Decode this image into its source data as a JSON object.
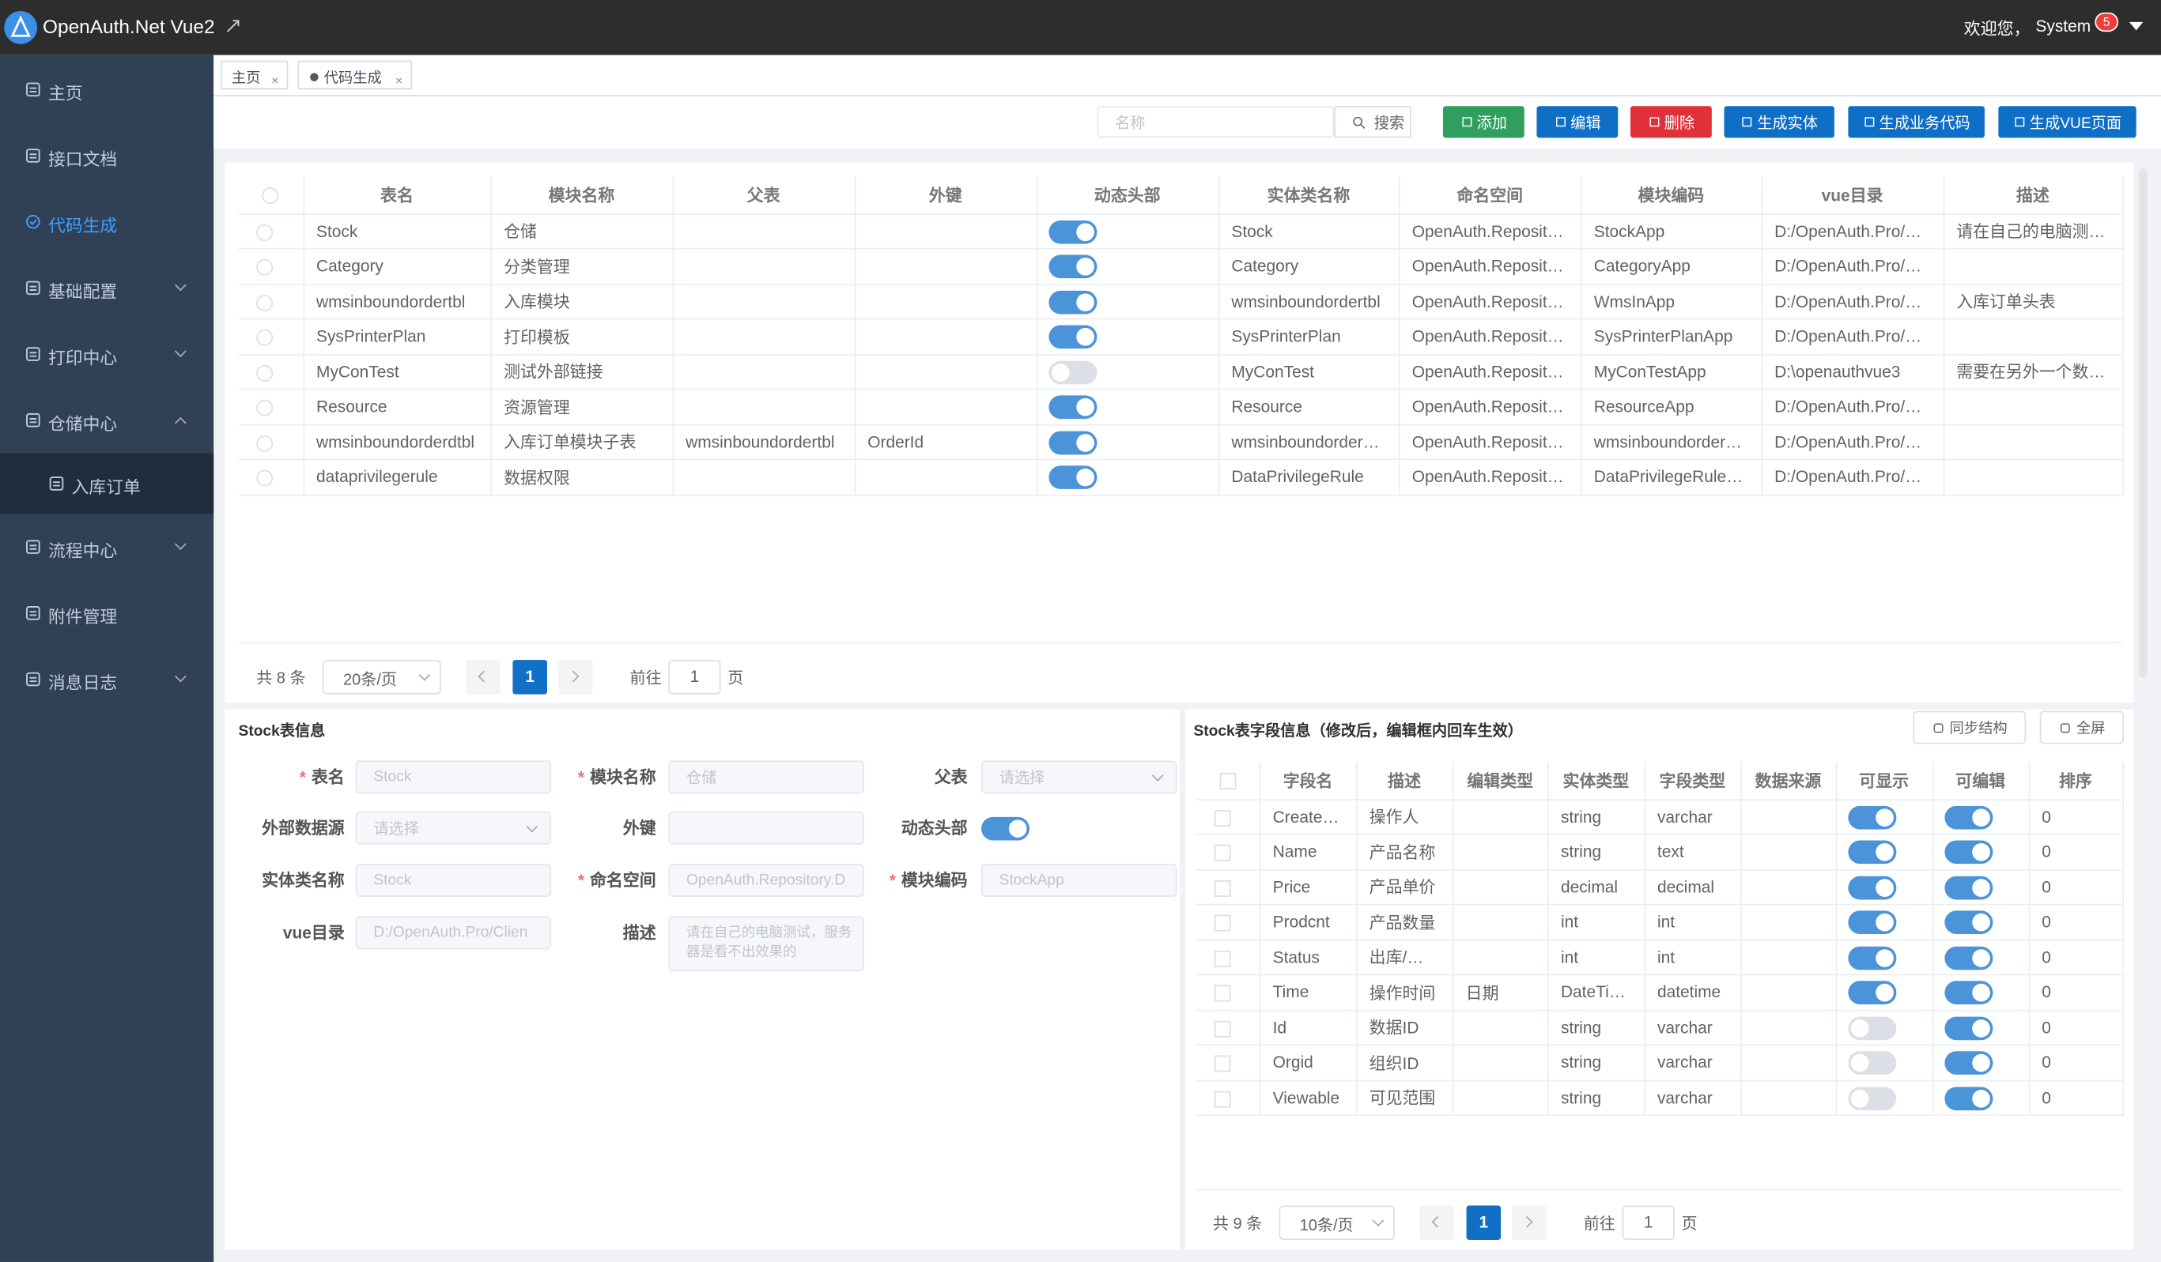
{
  "header": {
    "title": "OpenAuth.Net Vue2",
    "welcome": "欢迎您，",
    "user": "System",
    "badge": "5"
  },
  "sidebar": [
    {
      "label": "主页"
    },
    {
      "label": "接口文档"
    },
    {
      "label": "代码生成",
      "active": true
    },
    {
      "label": "基础配置",
      "arrow": "down"
    },
    {
      "label": "打印中心",
      "arrow": "down"
    },
    {
      "label": "仓储中心",
      "arrow": "up"
    },
    {
      "label": "入库订单",
      "sub": true
    },
    {
      "label": "流程中心",
      "arrow": "down"
    },
    {
      "label": "附件管理"
    },
    {
      "label": "消息日志",
      "arrow": "down"
    }
  ],
  "tabs": [
    "主页",
    "代码生成"
  ],
  "toolbar": {
    "placeholder": "名称",
    "search": "搜索",
    "buttons": [
      {
        "label": "添加",
        "color": "#2f9e5e"
      },
      {
        "label": "编辑",
        "color": "#0f6fc6"
      },
      {
        "label": "删除",
        "color": "#e0313b"
      },
      {
        "label": "生成实体",
        "color": "#0f6fc6"
      },
      {
        "label": "生成业务代码",
        "color": "#0f6fc6"
      },
      {
        "label": "生成VUE页面",
        "color": "#0f6fc6"
      }
    ]
  },
  "table": {
    "columns": [
      "表名",
      "模块名称",
      "父表",
      "外键",
      "动态头部",
      "实体类名称",
      "命名空间",
      "模块编码",
      "vue目录",
      "描述"
    ],
    "rows": [
      [
        "Stock",
        "仓储",
        null,
        null,
        true,
        "Stock",
        "OpenAuth.Reposit…",
        "StockApp",
        "D:/OpenAuth.Pro/…",
        "请在自己的电脑测…"
      ],
      [
        "Category",
        "分类管理",
        null,
        null,
        true,
        "Category",
        "OpenAuth.Reposit…",
        "CategoryApp",
        "D:/OpenAuth.Pro/…",
        null
      ],
      [
        "wmsinboundordertbl",
        "入库模块",
        null,
        null,
        true,
        "wmsinboundordertbl",
        "OpenAuth.Reposit…",
        "WmsInApp",
        "D:/OpenAuth.Pro/…",
        "入库订单头表"
      ],
      [
        "SysPrinterPlan",
        "打印模板",
        null,
        null,
        true,
        "SysPrinterPlan",
        "OpenAuth.Reposit…",
        "SysPrinterPlanApp",
        "D:/OpenAuth.Pro/…",
        null
      ],
      [
        "MyConTest",
        "测试外部链接",
        null,
        null,
        false,
        "MyConTest",
        "OpenAuth.Reposit…",
        "MyConTestApp",
        "D:\\openauthvue3",
        "需要在另外一个数…"
      ],
      [
        "Resource",
        "资源管理",
        null,
        null,
        true,
        "Resource",
        "OpenAuth.Reposit…",
        "ResourceApp",
        "D:/OpenAuth.Pro/…",
        null
      ],
      [
        "wmsinboundorderdtbl",
        "入库订单模块子表",
        "wmsinboundordertbl",
        "OrderId",
        true,
        "wmsinboundorder…",
        "OpenAuth.Reposit…",
        "wmsinboundorder…",
        "D:/OpenAuth.Pro/…",
        null
      ],
      [
        "dataprivilegerule",
        "数据权限",
        null,
        null,
        true,
        "DataPrivilegeRule",
        "OpenAuth.Reposit…",
        "DataPrivilegeRule…",
        "D:/OpenAuth.Pro/…",
        null
      ]
    ],
    "pagination": {
      "total": "共 8 条",
      "size": "20条/页",
      "page": "1",
      "goto": "前往",
      "input": "1",
      "unit": "页"
    }
  },
  "form": {
    "title": "Stock表信息",
    "fields": [
      {
        "label": "表名",
        "required": "*",
        "value": "Stock"
      },
      {
        "label": "模块名称",
        "required": "*",
        "value": "仓储"
      },
      {
        "label": "父表",
        "placeholder": "请选择",
        "kind": "select"
      },
      {
        "label": "外部数据源",
        "placeholder": "请选择",
        "kind": "select"
      },
      {
        "label": "外键"
      },
      {
        "label": "动态头部",
        "kind": "switch",
        "on": true
      },
      {
        "label": "实体类名称",
        "value": "Stock"
      },
      {
        "label": "命名空间",
        "required": "*",
        "value": "OpenAuth.Repository.D"
      },
      {
        "label": "模块编码",
        "required": "*",
        "value": "StockApp"
      },
      {
        "label": "vue目录",
        "value": "D:/OpenAuth.Pro/Clien"
      },
      {
        "label": "描述",
        "kind": "textarea",
        "value": "请在自己的电脑测试，服务器是看不出效果的"
      }
    ]
  },
  "fields": {
    "title": "Stock表字段信息（修改后，编辑框内回车生效）",
    "buttons": [
      "同步结构",
      "全屏"
    ],
    "columns": [
      "字段名",
      "描述",
      "编辑类型",
      "实体类型",
      "字段类型",
      "数据来源",
      "可显示",
      "可编辑",
      "排序"
    ],
    "rows": [
      [
        "Create…",
        "操作人",
        null,
        "string",
        "varchar",
        null,
        true,
        true,
        0
      ],
      [
        "Name",
        "产品名称",
        null,
        "string",
        "text",
        null,
        true,
        true,
        0
      ],
      [
        "Price",
        "产品单价",
        null,
        "decimal",
        "decimal",
        null,
        true,
        true,
        0
      ],
      [
        "Prodcnt",
        "产品数量",
        null,
        "int",
        "int",
        null,
        true,
        true,
        0
      ],
      [
        "Status",
        "出库/…",
        null,
        "int",
        "int",
        null,
        true,
        true,
        0
      ],
      [
        "Time",
        "操作时间",
        "日期",
        "DateTi…",
        "datetime",
        null,
        true,
        true,
        0
      ],
      [
        "Id",
        "数据ID",
        null,
        "string",
        "varchar",
        null,
        false,
        true,
        0
      ],
      [
        "Orgid",
        "组织ID",
        null,
        "string",
        "varchar",
        null,
        false,
        true,
        0
      ],
      [
        "Viewable",
        "可见范围",
        null,
        "string",
        "varchar",
        null,
        false,
        true,
        0
      ]
    ],
    "pagination": {
      "total": "共 9 条",
      "size": "10条/页",
      "page": "1",
      "goto": "前往",
      "input": "1",
      "unit": "页"
    }
  }
}
